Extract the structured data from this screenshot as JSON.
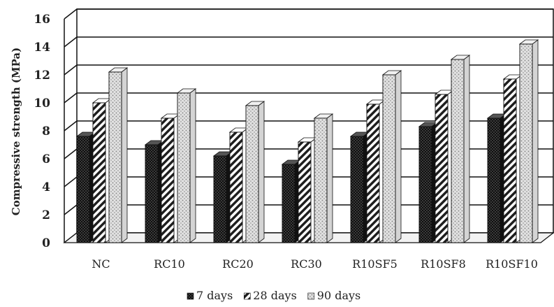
{
  "chart_data": {
    "type": "bar",
    "ylabel": "Compressive strength (MPa)",
    "xlabel": "",
    "ylim": [
      0,
      16
    ],
    "yticks": [
      0,
      2,
      4,
      6,
      8,
      10,
      12,
      14,
      16
    ],
    "grid": true,
    "legend_position": "bottom",
    "categories": [
      "NC",
      "RC10",
      "RC20",
      "RC30",
      "R10SF5",
      "R10SF8",
      "R10SF10"
    ],
    "series": [
      {
        "name": "7 days",
        "values": [
          7.6,
          7.0,
          6.2,
          5.6,
          7.6,
          8.3,
          8.9
        ],
        "color": "#2a2a2a",
        "pattern": "dark-dots"
      },
      {
        "name": "28 days",
        "values": [
          10.0,
          8.9,
          7.9,
          7.2,
          9.9,
          10.6,
          11.7
        ],
        "color": "#333333",
        "pattern": "diagonal-stripes"
      },
      {
        "name": "90 days",
        "values": [
          12.2,
          10.7,
          9.8,
          8.9,
          12.0,
          13.1,
          14.2
        ],
        "color": "#bbbbbb",
        "pattern": "light-dots"
      }
    ]
  }
}
